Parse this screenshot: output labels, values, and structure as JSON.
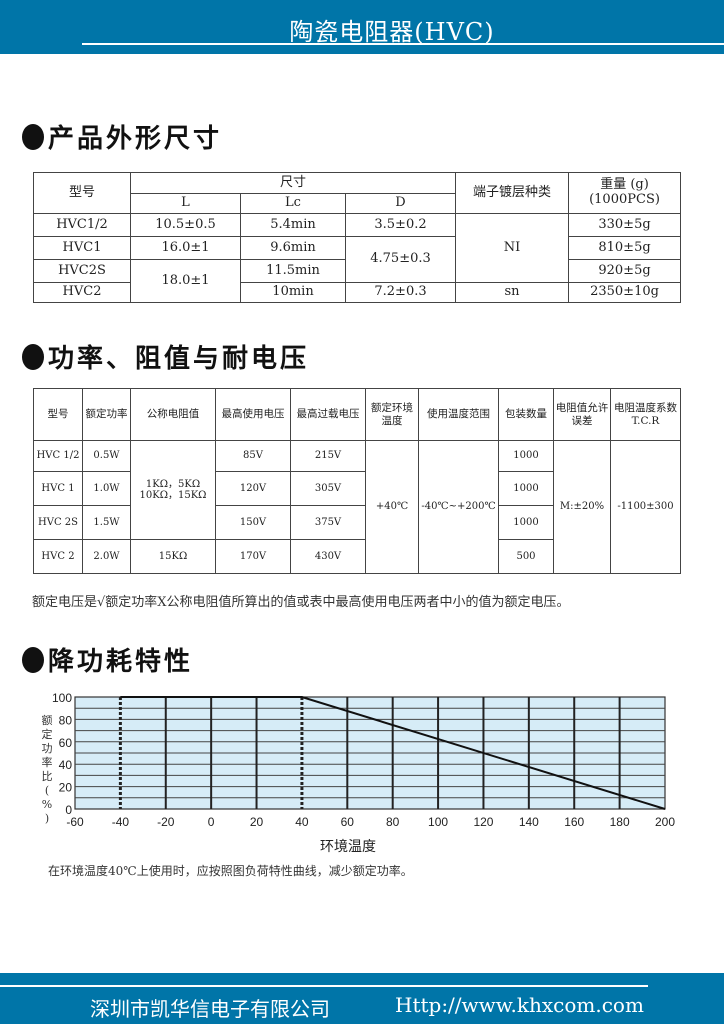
{
  "header": {
    "title": "陶瓷电阻器(HVC)"
  },
  "sections": {
    "s1": "产品外形尺寸",
    "s2": "功率、阻值与耐电压",
    "s3": "降功耗特性"
  },
  "table1": {
    "headers": {
      "model": "型号",
      "size": "尺寸",
      "L": "L",
      "Lc": "Lc",
      "D": "D",
      "plating": "端子镀层种类",
      "weight": "重量 (g)",
      "weight_unit": "(1000PCS)"
    },
    "rows": [
      {
        "model": "HVC1/2",
        "L": "10.5±0.5",
        "Lc": "5.4min",
        "D": "3.5±0.2",
        "weight": "330±5g"
      },
      {
        "model": "HVC1",
        "L": "16.0±1",
        "Lc": "9.6min",
        "D": "4.75±0.3",
        "weight": "810±5g"
      },
      {
        "model": "HVC2S",
        "L": "18.0±1",
        "Lc": "11.5min",
        "weight": "920±5g"
      },
      {
        "model": "HVC2",
        "Lc": "10min",
        "D": "7.2±0.3",
        "plating": "sn",
        "weight": "2350±10g"
      }
    ],
    "plating_ni": "NI"
  },
  "table2": {
    "headers": [
      "型号",
      "额定功率",
      "公称电阻值",
      "最高使用电压",
      "最高过载电压",
      "额定环境温度",
      "使用温度范围",
      "包装数量",
      "电阻值允许误差",
      "电阻温度系数",
      "T.C.R"
    ],
    "rows": [
      {
        "model": "HVC 1/2",
        "power": "0.5W",
        "vmax": "85V",
        "vover": "215V",
        "pack": "1000"
      },
      {
        "model": "HVC 1",
        "power": "1.0W",
        "vmax": "120V",
        "vover": "305V",
        "pack": "1000"
      },
      {
        "model": "HVC 2S",
        "power": "1.5W",
        "vmax": "150V",
        "vover": "375V",
        "pack": "1000"
      },
      {
        "model": "HVC 2",
        "power": "2.0W",
        "res": "15KΩ",
        "vmax": "170V",
        "vover": "430V",
        "pack": "500"
      }
    ],
    "res_merged_1": "1KΩ，5KΩ",
    "res_merged_2": "10KΩ，15KΩ",
    "ambient": "+40℃",
    "range": "-40℃~+200℃",
    "tolerance": "M:±20%",
    "tcr": "-1100±300"
  },
  "note1": "额定电压是√额定功率X公称电阻值所算出的值或表中最高使用电压两者中小的值为额定电压。",
  "chart_data": {
    "type": "line",
    "xlabel": "环境温度",
    "ylabel": "额定功率比 (%)",
    "xlim": [
      -60,
      200
    ],
    "ylim": [
      0,
      100
    ],
    "xticks": [
      "-60",
      "-40",
      "-20",
      "0",
      "20",
      "40",
      "60",
      "80",
      "100",
      "120",
      "140",
      "160",
      "180",
      "200"
    ],
    "yticks": [
      "0",
      "20",
      "40",
      "60",
      "80",
      "100"
    ],
    "series": [
      {
        "x": [
          -40,
          40,
          200
        ],
        "y": [
          100,
          100,
          0
        ]
      }
    ],
    "grid": true,
    "background": "#d6ecf7",
    "dashed_lines_at": [
      -40,
      40
    ]
  },
  "note2": "在环境温度40℃上使用时，应按照图负荷特性曲线，减少额定功率。",
  "footer": {
    "company": "深圳市凯华信电子有限公司",
    "url": "Http://www.khxcom.com"
  },
  "colors": {
    "brand": "#0075a8"
  }
}
